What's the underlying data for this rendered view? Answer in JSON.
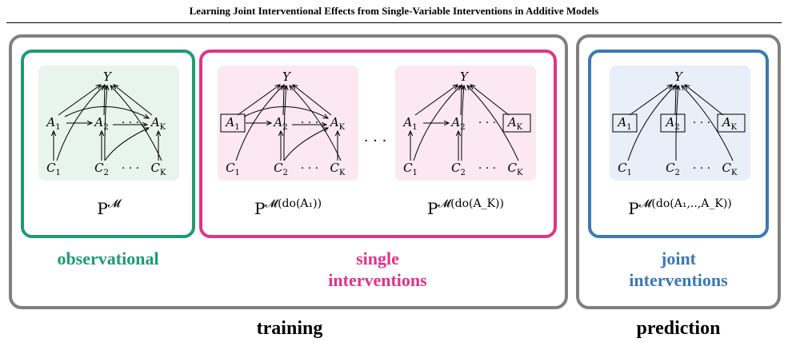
{
  "paper_header": "Learning Joint Interventional Effects from Single-Variable Interventions in Additive Models",
  "colors": {
    "observational": "#1f9a6f",
    "single": "#e0338a",
    "joint": "#3b78b5",
    "outer": "#808080",
    "obs_bg": "#e8f4ee",
    "single_bg": "#fbe8f1",
    "joint_bg": "#e8eff8"
  },
  "nodes": {
    "Y": "Y",
    "A": "A",
    "C": "C",
    "sub1": "1",
    "sub2": "2",
    "subK": "K",
    "dots": "· · ·"
  },
  "distributions": {
    "P": "P",
    "M": "𝓜",
    "obs_sup": "",
    "single1_sup": "(do(A₁))",
    "singleK_sup": "(do(A_K))",
    "joint_sup": "(do(A₁,..,A_K))"
  },
  "ellipsis_between": "· · ·",
  "labels": {
    "observational": "observational",
    "single_line1": "single",
    "single_line2": "interventions",
    "joint_line1": "joint",
    "joint_line2": "interventions"
  },
  "bottom_labels": {
    "training": "training",
    "prediction": "prediction"
  }
}
